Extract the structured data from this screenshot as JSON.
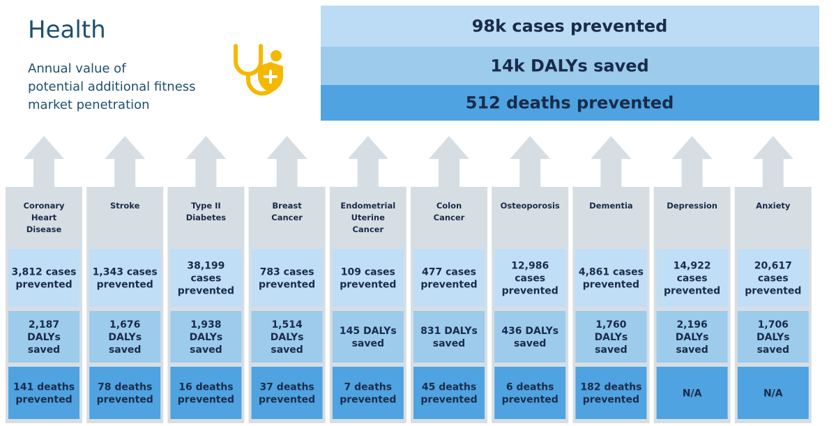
{
  "header": {
    "title": "Health",
    "subtitle": [
      "Annual value of",
      "potential additional fitness",
      "market penetration"
    ]
  },
  "summary": [
    "98k cases prevented",
    "14k DALYs saved",
    "512 deaths prevented"
  ],
  "columns": [
    {
      "label": [
        "Coronary",
        "Heart",
        "Disease"
      ],
      "cases": [
        "3,812 cases",
        "prevented"
      ],
      "dalys": [
        "2,187",
        "DALYs",
        "saved"
      ],
      "deaths": [
        "141 deaths",
        "prevented"
      ]
    },
    {
      "label": [
        "Stroke"
      ],
      "cases": [
        "1,343 cases",
        "prevented"
      ],
      "dalys": [
        "1,676",
        "DALYs",
        "saved"
      ],
      "deaths": [
        "78 deaths",
        "prevented"
      ]
    },
    {
      "label": [
        "Type II",
        "Diabetes"
      ],
      "cases": [
        "38,199",
        "cases",
        "prevented"
      ],
      "dalys": [
        "1,938",
        "DALYs",
        "saved"
      ],
      "deaths": [
        "16 deaths",
        "prevented"
      ]
    },
    {
      "label": [
        "Breast",
        "Cancer"
      ],
      "cases": [
        "783 cases",
        "prevented"
      ],
      "dalys": [
        "1,514",
        "DALYs",
        "saved"
      ],
      "deaths": [
        "37 deaths",
        "prevented"
      ]
    },
    {
      "label": [
        "Endometrial",
        "Uterine",
        "Cancer"
      ],
      "cases": [
        "109 cases",
        "prevented"
      ],
      "dalys": [
        "145 DALYs",
        "saved"
      ],
      "deaths": [
        "7 deaths",
        "prevented"
      ]
    },
    {
      "label": [
        "Colon",
        "Cancer"
      ],
      "cases": [
        "477 cases",
        "prevented"
      ],
      "dalys": [
        "831 DALYs",
        "saved"
      ],
      "deaths": [
        "45 deaths",
        "prevented"
      ]
    },
    {
      "label": [
        "Osteoporosis"
      ],
      "cases": [
        "12,986",
        "cases",
        "prevented"
      ],
      "dalys": [
        "436 DALYs",
        "saved"
      ],
      "deaths": [
        "6 deaths",
        "prevented"
      ]
    },
    {
      "label": [
        "Dementia"
      ],
      "cases": [
        "4,861 cases",
        "prevented"
      ],
      "dalys": [
        "1,760",
        "DALYs",
        "saved"
      ],
      "deaths": [
        "182 deaths",
        "prevented"
      ]
    },
    {
      "label": [
        "Depression"
      ],
      "cases": [
        "14,922",
        "cases",
        "prevented"
      ],
      "dalys": [
        "2,196",
        "DALYs",
        "saved"
      ],
      "deaths": [
        "N/A"
      ]
    },
    {
      "label": [
        "Anxiety"
      ],
      "cases": [
        "20,617",
        "cases",
        "prevented"
      ],
      "dalys": [
        "1,706",
        "DALYs",
        "saved"
      ],
      "deaths": [
        "N/A"
      ]
    }
  ]
}
